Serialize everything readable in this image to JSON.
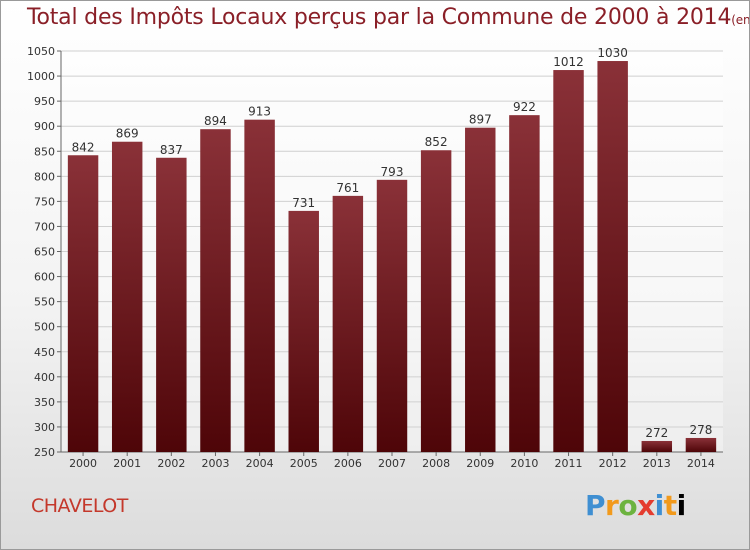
{
  "title": {
    "main": "Total des Impôts Locaux perçus par la Commune de 2000 à 2014",
    "unit": "(en milliers d'€)"
  },
  "commune": "CHAVELOT",
  "logo": {
    "text": "Proxiti",
    "letters": [
      "P",
      "r",
      "o",
      "x",
      "i",
      "t",
      "i"
    ]
  },
  "colors": {
    "bar_light": "#8a3138",
    "bar_dark": "#4e0508",
    "title": "#8a1f27",
    "commune": "#c4382b"
  },
  "chart_data": {
    "type": "bar",
    "title": "Total des Impôts Locaux perçus par la Commune de 2000 à 2014",
    "xlabel": "",
    "ylabel": "en milliers d'€",
    "categories": [
      "2000",
      "2001",
      "2002",
      "2003",
      "2004",
      "2005",
      "2006",
      "2007",
      "2008",
      "2009",
      "2010",
      "2011",
      "2012",
      "2013",
      "2014"
    ],
    "values": [
      842,
      869,
      837,
      894,
      913,
      731,
      761,
      793,
      852,
      897,
      922,
      1012,
      1030,
      272,
      278
    ],
    "ylim": [
      250,
      1050
    ],
    "yticks": [
      250,
      300,
      350,
      400,
      450,
      500,
      550,
      600,
      650,
      700,
      750,
      800,
      850,
      900,
      950,
      1000,
      1050
    ],
    "grid": true,
    "legend": "none"
  }
}
